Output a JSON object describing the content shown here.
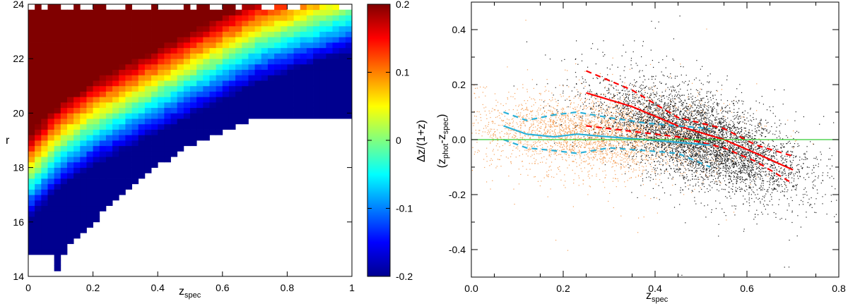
{
  "chart_data": [
    {
      "type": "heatmap",
      "xlabel": "z",
      "xlabel_sub": "spec",
      "ylabel": "r",
      "xlim": [
        0,
        1
      ],
      "ylim": [
        14,
        24
      ],
      "xticks": [
        0,
        0.2,
        0.4,
        0.6,
        0.8,
        1
      ],
      "xtick_labels": [
        "0",
        "0.2",
        "0.4",
        "0.6",
        "0.8",
        "1"
      ],
      "yticks": [
        14,
        16,
        18,
        20,
        22,
        24
      ],
      "ytick_labels": [
        "14",
        "16",
        "18",
        "20",
        "22",
        "24"
      ],
      "grid": false,
      "colorbar": {
        "label": "Δz/(1+z)",
        "range": [
          -0.2,
          0.2
        ],
        "ticks": [
          0.2,
          0.1,
          0,
          -0.1,
          -0.2
        ],
        "tick_labels": [
          "0.2",
          "0.1",
          "0",
          "-0.1",
          "-0.2"
        ],
        "colormap": "jet",
        "stops": [
          "#00008f",
          "#0000ff",
          "#00ffff",
          "#ffff00",
          "#ff0000",
          "#800000"
        ]
      },
      "grid_shape": {
        "x_bins": 50,
        "y_bins": 50
      },
      "ridge": {
        "x": [
          0.0,
          0.1,
          0.2,
          0.3,
          0.4,
          0.5,
          0.6,
          0.7,
          0.8,
          0.9,
          1.0
        ],
        "r": [
          17.6,
          18.8,
          19.6,
          20.2,
          20.8,
          21.4,
          22.0,
          22.6,
          23.0,
          23.4,
          23.8
        ]
      },
      "lower_boundary": {
        "x": [
          0.08,
          0.1,
          0.15,
          0.2,
          0.25,
          0.3,
          0.35,
          0.4,
          0.45,
          0.5,
          0.55,
          0.6,
          0.7,
          0.8,
          0.9,
          0.95
        ],
        "r": [
          14.0,
          14.8,
          15.6,
          16.1,
          16.7,
          17.3,
          17.8,
          18.2,
          18.6,
          19.0,
          19.2,
          19.5,
          19.9,
          20.0,
          20.0,
          20.0
        ]
      }
    },
    {
      "type": "scatter",
      "xlabel": "z",
      "xlabel_sub": "spec",
      "ylabel_parts": [
        "(z",
        "phot",
        "-z",
        "spec",
        ")"
      ],
      "xlim": [
        0.0,
        0.8
      ],
      "ylim": [
        -0.5,
        0.5
      ],
      "xticks": [
        0.0,
        0.2,
        0.4,
        0.6,
        0.8
      ],
      "xtick_labels": [
        "0.0",
        "0.2",
        "0.4",
        "0.6",
        "0.8"
      ],
      "yticks": [
        0.4,
        0.2,
        0.0,
        -0.2,
        -0.4
      ],
      "ytick_labels": [
        "0.4",
        "0.2",
        "0.0",
        "-0.2",
        "-0.4"
      ],
      "grid": false,
      "series": [
        {
          "color": "#1a1a1a",
          "center": [
            0.5,
            0.0
          ],
          "spread": [
            0.11,
            0.09
          ],
          "slope": -0.55,
          "count": 5200
        },
        {
          "color": "#f5a15a",
          "center": [
            0.28,
            0.02
          ],
          "spread": [
            0.14,
            0.075
          ],
          "slope": -0.1,
          "count": 3400
        }
      ],
      "lines": [
        {
          "color": "#ff0000",
          "dashed": false,
          "x": [
            0.25,
            0.35,
            0.45,
            0.55,
            0.62,
            0.7
          ],
          "y": [
            0.17,
            0.12,
            0.05,
            0.0,
            -0.05,
            -0.11
          ]
        },
        {
          "color": "#ff0000",
          "dashed": true,
          "x": [
            0.25,
            0.35,
            0.45,
            0.55,
            0.62,
            0.7
          ],
          "y": [
            0.25,
            0.18,
            0.08,
            0.04,
            -0.02,
            -0.06
          ]
        },
        {
          "color": "#ff0000",
          "dashed": true,
          "x": [
            0.25,
            0.35,
            0.45,
            0.55,
            0.62,
            0.7
          ],
          "y": [
            0.05,
            0.03,
            0.01,
            -0.03,
            -0.08,
            -0.16
          ]
        },
        {
          "color": "#2ab0d8",
          "dashed": false,
          "x": [
            0.07,
            0.12,
            0.18,
            0.23,
            0.3,
            0.38,
            0.45,
            0.52
          ],
          "y": [
            0.05,
            0.02,
            0.01,
            0.02,
            0.01,
            0.0,
            -0.01,
            -0.02
          ]
        },
        {
          "color": "#2ab0d8",
          "dashed": true,
          "x": [
            0.07,
            0.12,
            0.18,
            0.23,
            0.3,
            0.38,
            0.45,
            0.52
          ],
          "y": [
            0.1,
            0.07,
            0.09,
            0.1,
            0.08,
            0.06,
            0.05,
            0.04
          ]
        },
        {
          "color": "#2ab0d8",
          "dashed": true,
          "x": [
            0.07,
            0.12,
            0.18,
            0.23,
            0.3,
            0.38,
            0.45,
            0.52
          ],
          "y": [
            0.0,
            -0.03,
            -0.04,
            -0.05,
            -0.03,
            -0.04,
            -0.05,
            -0.1
          ]
        },
        {
          "color": "#33cc33",
          "dashed": false,
          "x": [
            0.0,
            0.8
          ],
          "y": [
            0.0,
            0.0
          ]
        }
      ]
    }
  ]
}
